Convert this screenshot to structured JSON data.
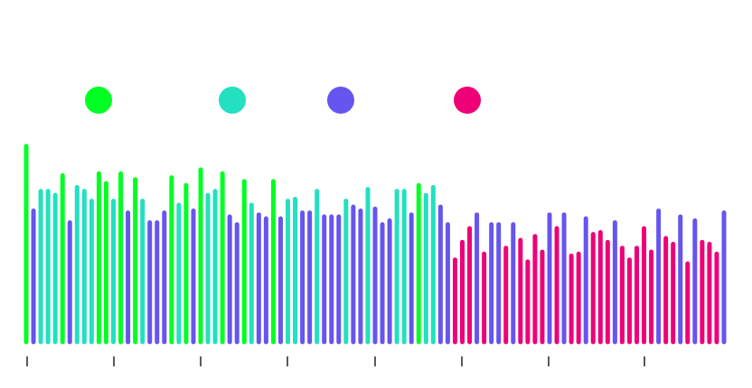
{
  "chart_data": {
    "type": "bar",
    "title": "",
    "xlabel": "",
    "ylabel": "",
    "ylim": [
      0,
      100
    ],
    "grid": false,
    "legend": {
      "placement": "top-left",
      "entries": [
        {
          "color": "#00ff22"
        },
        {
          "color": "#22e0c0"
        },
        {
          "color": "#6655ee"
        },
        {
          "color": "#ee0077"
        }
      ]
    },
    "bars": [
      {
        "c": 0,
        "v": 100
      },
      {
        "c": 2,
        "v": 67
      },
      {
        "c": 1,
        "v": 77
      },
      {
        "c": 1,
        "v": 77
      },
      {
        "c": 1,
        "v": 75
      },
      {
        "c": 0,
        "v": 85
      },
      {
        "c": 2,
        "v": 61
      },
      {
        "c": 1,
        "v": 79
      },
      {
        "c": 1,
        "v": 77
      },
      {
        "c": 1,
        "v": 72
      },
      {
        "c": 0,
        "v": 86
      },
      {
        "c": 0,
        "v": 81
      },
      {
        "c": 1,
        "v": 72
      },
      {
        "c": 0,
        "v": 86
      },
      {
        "c": 2,
        "v": 66
      },
      {
        "c": 0,
        "v": 83
      },
      {
        "c": 1,
        "v": 72
      },
      {
        "c": 2,
        "v": 61
      },
      {
        "c": 2,
        "v": 61
      },
      {
        "c": 2,
        "v": 66
      },
      {
        "c": 0,
        "v": 84
      },
      {
        "c": 1,
        "v": 70
      },
      {
        "c": 0,
        "v": 80
      },
      {
        "c": 2,
        "v": 67
      },
      {
        "c": 0,
        "v": 88
      },
      {
        "c": 1,
        "v": 75
      },
      {
        "c": 1,
        "v": 77
      },
      {
        "c": 0,
        "v": 86
      },
      {
        "c": 2,
        "v": 64
      },
      {
        "c": 2,
        "v": 60
      },
      {
        "c": 0,
        "v": 82
      },
      {
        "c": 1,
        "v": 70
      },
      {
        "c": 2,
        "v": 65
      },
      {
        "c": 2,
        "v": 63
      },
      {
        "c": 0,
        "v": 82
      },
      {
        "c": 2,
        "v": 63
      },
      {
        "c": 1,
        "v": 72
      },
      {
        "c": 1,
        "v": 73
      },
      {
        "c": 2,
        "v": 66
      },
      {
        "c": 2,
        "v": 66
      },
      {
        "c": 1,
        "v": 77
      },
      {
        "c": 2,
        "v": 64
      },
      {
        "c": 2,
        "v": 64
      },
      {
        "c": 2,
        "v": 64
      },
      {
        "c": 1,
        "v": 72
      },
      {
        "c": 2,
        "v": 69
      },
      {
        "c": 2,
        "v": 67
      },
      {
        "c": 1,
        "v": 78
      },
      {
        "c": 2,
        "v": 68
      },
      {
        "c": 2,
        "v": 60
      },
      {
        "c": 2,
        "v": 62
      },
      {
        "c": 1,
        "v": 77
      },
      {
        "c": 1,
        "v": 77
      },
      {
        "c": 2,
        "v": 65
      },
      {
        "c": 0,
        "v": 80
      },
      {
        "c": 1,
        "v": 75
      },
      {
        "c": 1,
        "v": 79
      },
      {
        "c": 2,
        "v": 69
      },
      {
        "c": 2,
        "v": 60
      },
      {
        "c": 3,
        "v": 42
      },
      {
        "c": 3,
        "v": 51
      },
      {
        "c": 3,
        "v": 58
      },
      {
        "c": 2,
        "v": 65
      },
      {
        "c": 3,
        "v": 45
      },
      {
        "c": 2,
        "v": 60
      },
      {
        "c": 2,
        "v": 60
      },
      {
        "c": 3,
        "v": 48
      },
      {
        "c": 2,
        "v": 60
      },
      {
        "c": 3,
        "v": 52
      },
      {
        "c": 3,
        "v": 41
      },
      {
        "c": 3,
        "v": 54
      },
      {
        "c": 3,
        "v": 46
      },
      {
        "c": 2,
        "v": 65
      },
      {
        "c": 3,
        "v": 58
      },
      {
        "c": 2,
        "v": 65
      },
      {
        "c": 3,
        "v": 44
      },
      {
        "c": 3,
        "v": 45
      },
      {
        "c": 2,
        "v": 63
      },
      {
        "c": 3,
        "v": 55
      },
      {
        "c": 3,
        "v": 56
      },
      {
        "c": 3,
        "v": 51
      },
      {
        "c": 2,
        "v": 61
      },
      {
        "c": 3,
        "v": 48
      },
      {
        "c": 3,
        "v": 42
      },
      {
        "c": 3,
        "v": 48
      },
      {
        "c": 3,
        "v": 58
      },
      {
        "c": 3,
        "v": 46
      },
      {
        "c": 2,
        "v": 67
      },
      {
        "c": 3,
        "v": 53
      },
      {
        "c": 3,
        "v": 50
      },
      {
        "c": 2,
        "v": 64
      },
      {
        "c": 3,
        "v": 40
      },
      {
        "c": 2,
        "v": 62
      },
      {
        "c": 3,
        "v": 51
      },
      {
        "c": 3,
        "v": 50
      },
      {
        "c": 3,
        "v": 45
      },
      {
        "c": 2,
        "v": 66
      }
    ],
    "x_ticks": 9
  }
}
